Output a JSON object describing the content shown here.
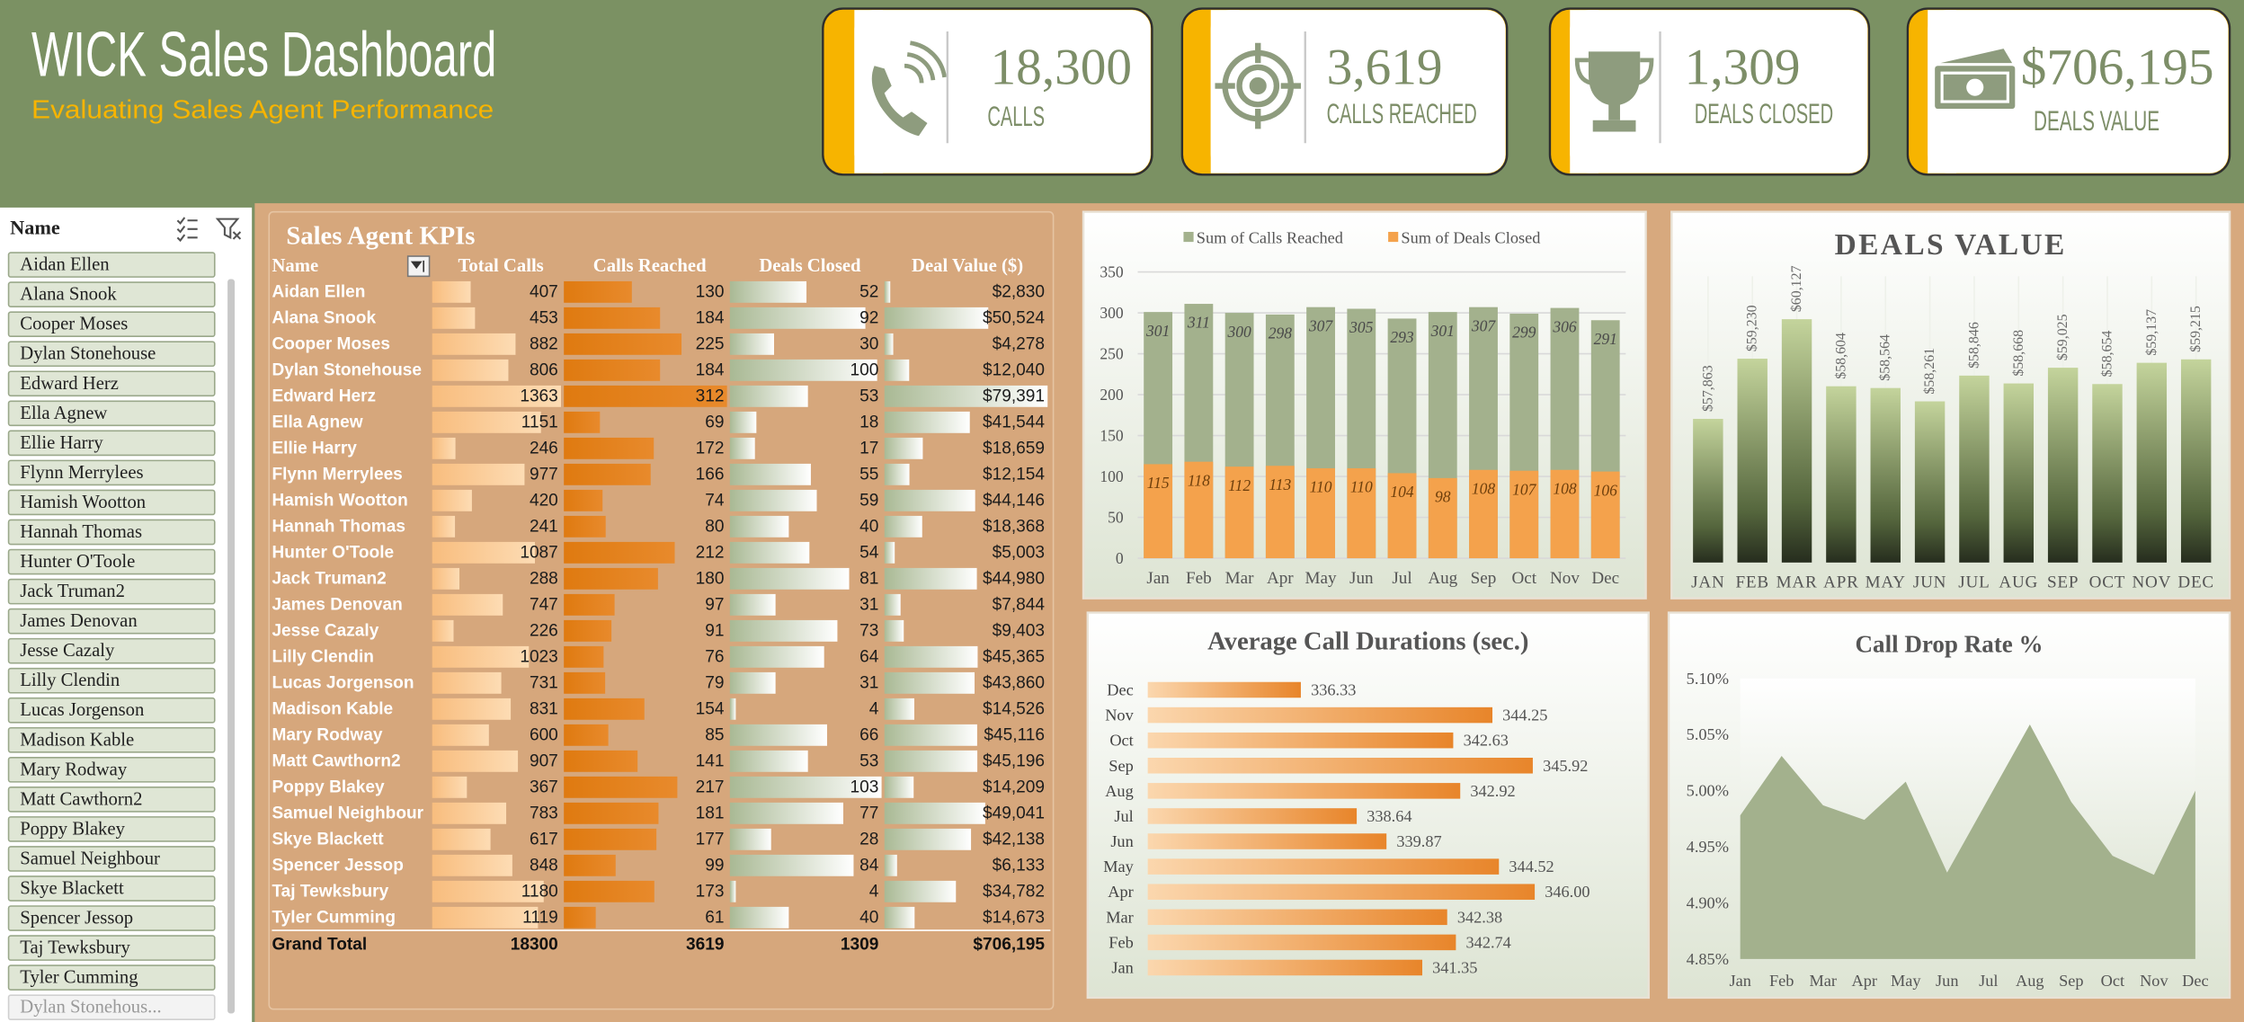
{
  "header": {
    "title": "WICK Sales Dashboard",
    "subtitle": "Evaluating Sales Agent Performance"
  },
  "kpis": [
    {
      "value": "18,300",
      "label": "CALLS"
    },
    {
      "value": "3,619",
      "label": "CALLS REACHED"
    },
    {
      "value": "1,309",
      "label": "DEALS CLOSED"
    },
    {
      "value": "$706,195",
      "label": "DEALS VALUE"
    }
  ],
  "slicer": {
    "title": "Name",
    "items": [
      "Aidan Ellen",
      "Alana Snook",
      "Cooper Moses",
      "Dylan Stonehouse",
      "Edward Herz",
      "Ella Agnew",
      "Ellie Harry",
      "Flynn Merrylees",
      "Hamish Wootton",
      "Hannah Thomas",
      "Hunter O'Toole",
      "Jack Truman2",
      "James Denovan",
      "Jesse Cazaly",
      "Lilly Clendin",
      "Lucas Jorgenson",
      "Madison Kable",
      "Mary Rodway",
      "Matt Cawthorn2",
      "Poppy Blakey",
      "Samuel Neighbour",
      "Skye Blackett",
      "Spencer Jessop",
      "Taj Tewksbury",
      "Tyler Cumming",
      "Dylan Stonehous..."
    ]
  },
  "table": {
    "title": "Sales Agent KPIs",
    "columns": [
      "Name",
      "Total Calls",
      "Calls Reached",
      "Deals Closed",
      "Deal Value ($)"
    ],
    "names": [
      "Aidan Ellen",
      "Alana Snook",
      "Cooper Moses",
      "Dylan Stonehouse",
      "Edward Herz",
      "Ella Agnew",
      "Ellie Harry",
      "Flynn Merrylees",
      "Hamish Wootton",
      "Hannah Thomas",
      "Hunter O'Toole",
      "Jack Truman2",
      "James Denovan",
      "Jesse Cazaly",
      "Lilly Clendin",
      "Lucas Jorgenson",
      "Madison Kable",
      "Mary Rodway",
      "Matt Cawthorn2",
      "Poppy Blakey",
      "Samuel Neighbour",
      "Skye Blackett",
      "Spencer Jessop",
      "Taj Tewksbury",
      "Tyler Cumming"
    ],
    "total_calls": [
      407,
      453,
      882,
      806,
      1363,
      1151,
      246,
      977,
      420,
      241,
      1087,
      288,
      747,
      226,
      1023,
      731,
      831,
      600,
      907,
      367,
      783,
      617,
      848,
      1180,
      1119
    ],
    "calls_reached": [
      130,
      184,
      225,
      184,
      312,
      69,
      172,
      166,
      74,
      80,
      212,
      180,
      97,
      91,
      76,
      79,
      154,
      85,
      141,
      217,
      181,
      177,
      99,
      173,
      61
    ],
    "deals_closed": [
      52,
      92,
      30,
      100,
      53,
      18,
      17,
      55,
      59,
      40,
      54,
      81,
      31,
      73,
      64,
      31,
      4,
      66,
      53,
      103,
      77,
      28,
      84,
      4,
      40
    ],
    "deal_value": [
      2830,
      50524,
      4278,
      12040,
      79391,
      41544,
      18659,
      12154,
      44146,
      18368,
      5003,
      44980,
      7844,
      9403,
      45365,
      43860,
      14526,
      45116,
      45196,
      14209,
      49041,
      42138,
      6133,
      34782,
      14673
    ],
    "deal_value_labels": [
      "$2,830",
      "$50,524",
      "$4,278",
      "$12,040",
      "$79,391",
      "$41,544",
      "$18,659",
      "$12,154",
      "$44,146",
      "$18,368",
      "$5,003",
      "$44,980",
      "$7,844",
      "$9,403",
      "$45,365",
      "$43,860",
      "$14,526",
      "$45,116",
      "$45,196",
      "$14,209",
      "$49,041",
      "$42,138",
      "$6,133",
      "$34,782",
      "$14,673"
    ],
    "total_label": "Grand Total",
    "totals": {
      "total_calls": 18300,
      "calls_reached": 3619,
      "deals_closed": 1309,
      "deal_value": 706195,
      "deal_value_label": "$706,195"
    }
  },
  "chart_data": [
    {
      "type": "bar",
      "categories": [
        "Jan",
        "Feb",
        "Mar",
        "Apr",
        "May",
        "Jun",
        "Jul",
        "Aug",
        "Sep",
        "Oct",
        "Nov",
        "Dec"
      ],
      "series": [
        {
          "name": "Sum of Calls Reached",
          "color": "#a3b18d",
          "values": [
            301,
            311,
            300,
            298,
            307,
            305,
            293,
            301,
            307,
            299,
            306,
            291
          ]
        },
        {
          "name": "Sum of Deals Closed",
          "color": "#f4a24c",
          "values": [
            115,
            118,
            112,
            113,
            110,
            110,
            104,
            98,
            108,
            107,
            108,
            106
          ]
        }
      ],
      "ylim": [
        0,
        350
      ],
      "yticks": [
        0,
        50,
        100,
        150,
        200,
        250,
        300,
        350
      ],
      "grid": true,
      "legend": "top"
    },
    {
      "type": "bar",
      "title": "DEALS VALUE",
      "categories": [
        "JAN",
        "FEB",
        "MAR",
        "APR",
        "MAY",
        "JUN",
        "JUL",
        "AUG",
        "SEP",
        "OCT",
        "NOV",
        "DEC"
      ],
      "values": [
        57863,
        59230,
        60127,
        58604,
        58564,
        58261,
        58846,
        58668,
        59025,
        58654,
        59137,
        59215
      ],
      "value_labels": [
        "$57,863",
        "$59,230",
        "$60,127",
        "$58,604",
        "$58,564",
        "$58,261",
        "$58,846",
        "$58,668",
        "$59,025",
        "$58,654",
        "$59,137",
        "$59,215"
      ],
      "color": "#b4c68c",
      "ylim": [
        54600,
        61200
      ]
    },
    {
      "type": "hbar",
      "title": "Average Call Durations (sec.)",
      "categories": [
        "Jan",
        "Feb",
        "Mar",
        "Apr",
        "May",
        "Jun",
        "Jul",
        "Aug",
        "Sep",
        "Oct",
        "Nov",
        "Dec"
      ],
      "values": [
        341.35,
        342.74,
        342.38,
        346.0,
        344.52,
        339.87,
        338.64,
        342.92,
        345.92,
        342.63,
        344.25,
        336.33
      ],
      "value_labels": [
        "341.35",
        "342.74",
        "342.38",
        "346.00",
        "344.52",
        "339.87",
        "338.64",
        "342.92",
        "345.92",
        "342.63",
        "344.25",
        "336.33"
      ],
      "color": "#e8852a",
      "xlim": [
        330,
        350
      ]
    },
    {
      "type": "area",
      "title": "Call Drop Rate %",
      "categories": [
        "Jan",
        "Feb",
        "Mar",
        "Apr",
        "May",
        "Jun",
        "Jul",
        "Aug",
        "Sep",
        "Oct",
        "Nov",
        "Dec"
      ],
      "values": [
        4.978,
        5.031,
        4.987,
        4.974,
        5.008,
        4.927,
        4.993,
        5.059,
        4.99,
        4.942,
        4.925,
        5.0
      ],
      "color": "#a3b18d",
      "ylim": [
        4.85,
        5.1
      ],
      "yticks": [
        {
          "value": 4.85,
          "label": "4.85%"
        },
        {
          "value": 4.9,
          "label": "4.90%"
        },
        {
          "value": 4.95,
          "label": "4.95%"
        },
        {
          "value": 5.0,
          "label": "5.00%"
        },
        {
          "value": 5.05,
          "label": "5.05%"
        },
        {
          "value": 5.1,
          "label": "5.10%"
        }
      ],
      "grid": false
    }
  ]
}
